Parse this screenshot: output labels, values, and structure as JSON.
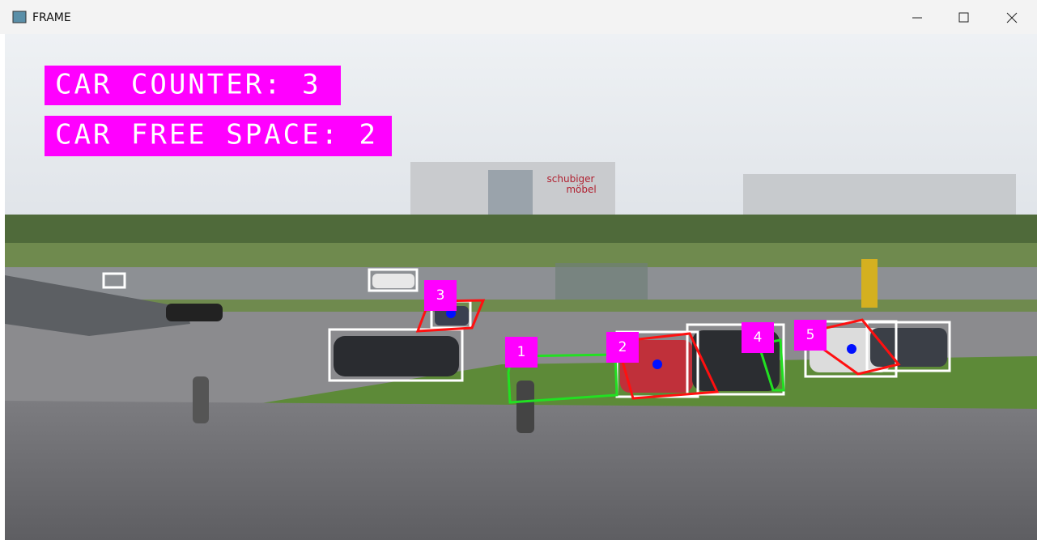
{
  "window": {
    "title": "FRAME"
  },
  "overlay": {
    "counter": "CAR COUNTER: 3",
    "free_space": "CAR FREE SPACE: 2"
  },
  "zones": [
    {
      "label": "1"
    },
    {
      "label": "2"
    },
    {
      "label": "3"
    },
    {
      "label": "4"
    },
    {
      "label": "5"
    }
  ]
}
